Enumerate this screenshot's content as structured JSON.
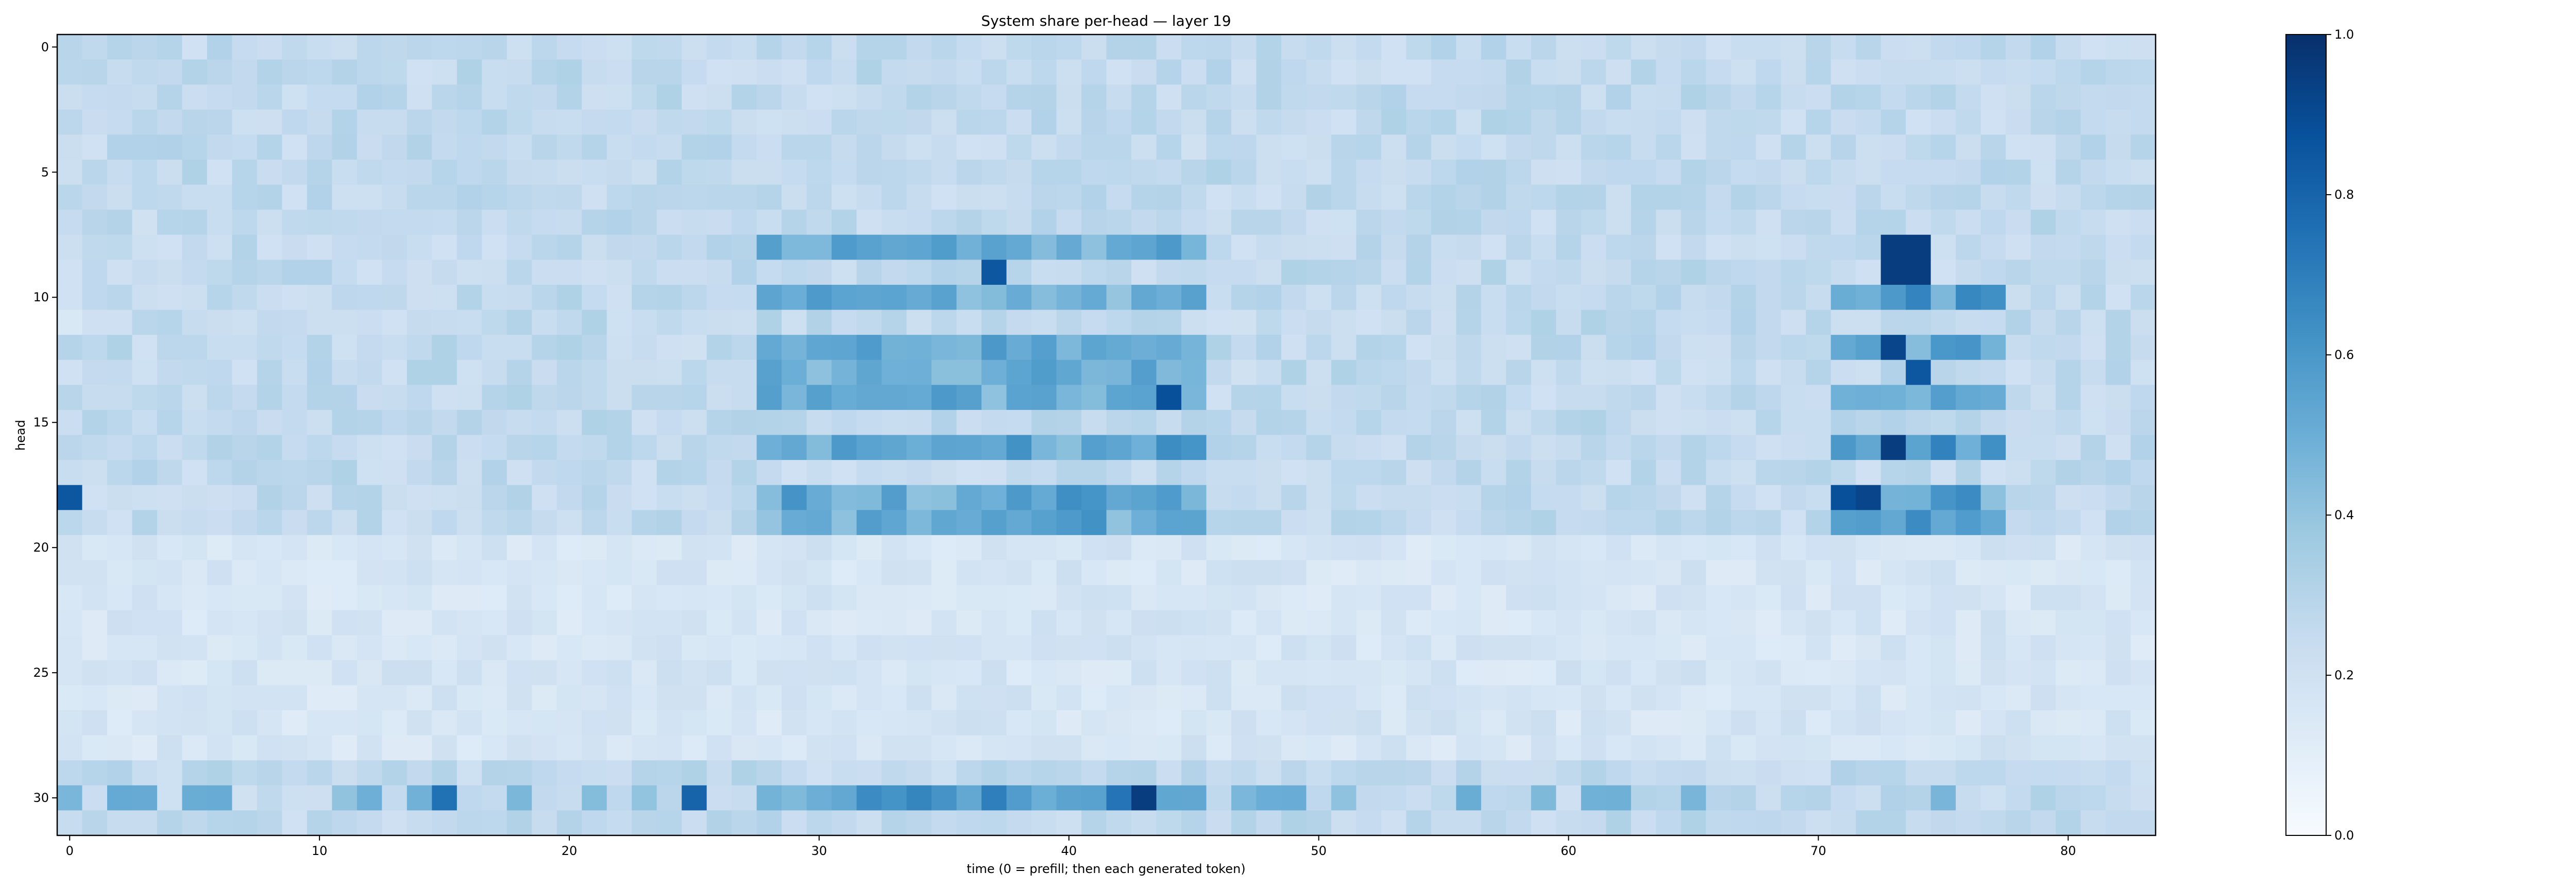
{
  "chart_data": {
    "type": "heatmap",
    "title": "System share per-head — layer 19",
    "xlabel": "time (0 = prefill; then each generated token)",
    "ylabel": "head",
    "x_ticks": [
      0,
      10,
      20,
      30,
      40,
      50,
      60,
      70,
      80
    ],
    "y_ticks": [
      0,
      5,
      10,
      15,
      20,
      25,
      30
    ],
    "n_cols": 84,
    "n_rows": 32,
    "xlim": [
      -0.5,
      83.5
    ],
    "ylim": [
      31.5,
      -0.5
    ],
    "colormap": "Blues",
    "colorbar": {
      "vmin": 0.0,
      "vmax": 1.0,
      "ticks": [
        "0.0",
        "0.2",
        "0.4",
        "0.6",
        "0.8",
        "1.0"
      ]
    },
    "notable_highs": [
      {
        "col": 73,
        "row": 8,
        "value": 0.95
      },
      {
        "col": 74,
        "row": 8,
        "value": 0.95
      },
      {
        "col": 73,
        "row": 9,
        "value": 0.95
      },
      {
        "col": 74,
        "row": 9,
        "value": 0.95
      },
      {
        "col": 37,
        "row": 9,
        "value": 0.85
      },
      {
        "col": 73,
        "row": 12,
        "value": 0.92
      },
      {
        "col": 74,
        "row": 13,
        "value": 0.85
      },
      {
        "col": 44,
        "row": 14,
        "value": 0.88
      },
      {
        "col": 73,
        "row": 16,
        "value": 0.95
      },
      {
        "col": 0,
        "row": 18,
        "value": 0.85
      },
      {
        "col": 71,
        "row": 18,
        "value": 0.88
      },
      {
        "col": 72,
        "row": 18,
        "value": 0.92
      },
      {
        "col": 43,
        "row": 30,
        "value": 0.95
      },
      {
        "col": 25,
        "row": 30,
        "value": 0.8
      },
      {
        "col": 15,
        "row": 30,
        "value": 0.75
      }
    ]
  }
}
